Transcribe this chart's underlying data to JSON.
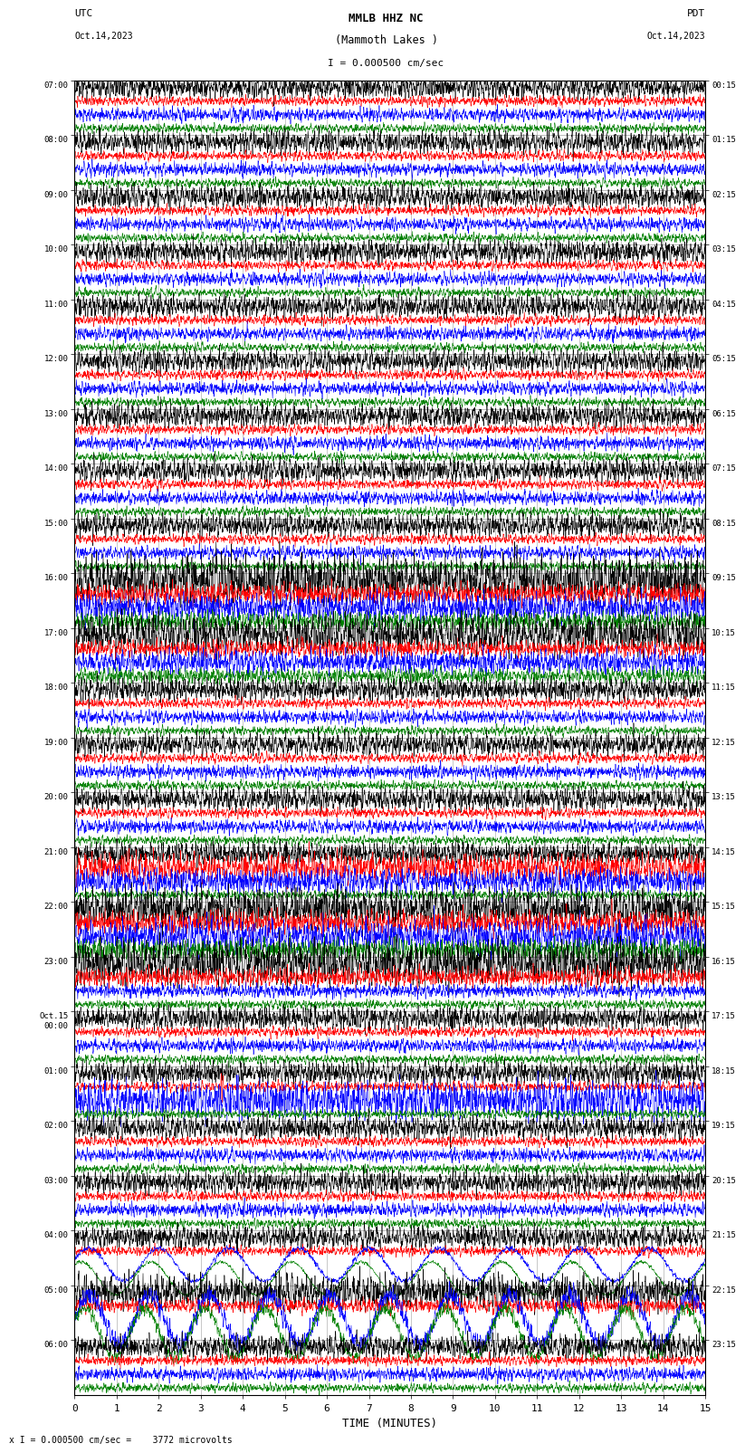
{
  "title_line1": "MMLB HHZ NC",
  "title_line2": "(Mammoth Lakes )",
  "scale_text": "I = 0.000500 cm/sec",
  "bottom_scale_text": "x I = 0.000500 cm/sec =    3772 microvolts",
  "utc_label": "UTC",
  "date_left": "Oct.14,2023",
  "pdt_label": "PDT",
  "date_right": "Oct.14,2023",
  "xlabel": "TIME (MINUTES)",
  "xlim": [
    0,
    15
  ],
  "xticks": [
    0,
    1,
    2,
    3,
    4,
    5,
    6,
    7,
    8,
    9,
    10,
    11,
    12,
    13,
    14,
    15
  ],
  "background_color": "#ffffff",
  "trace_colors": [
    "black",
    "red",
    "blue",
    "green"
  ],
  "sample_rate": 4500,
  "utc_labels": [
    "07:00",
    "08:00",
    "09:00",
    "10:00",
    "11:00",
    "12:00",
    "13:00",
    "14:00",
    "15:00",
    "16:00",
    "17:00",
    "18:00",
    "19:00",
    "20:00",
    "21:00",
    "22:00",
    "23:00",
    "Oct.15\n00:00",
    "01:00",
    "02:00",
    "03:00",
    "04:00",
    "05:00",
    "06:00"
  ],
  "pdt_labels": [
    "00:15",
    "01:15",
    "02:15",
    "03:15",
    "04:15",
    "05:15",
    "06:15",
    "07:15",
    "08:15",
    "09:15",
    "10:15",
    "11:15",
    "12:15",
    "13:15",
    "14:15",
    "15:15",
    "16:15",
    "17:15",
    "18:15",
    "19:15",
    "20:15",
    "21:15",
    "22:15",
    "23:15"
  ],
  "num_time_rows": 24,
  "fig_width": 8.5,
  "fig_height": 16.13
}
